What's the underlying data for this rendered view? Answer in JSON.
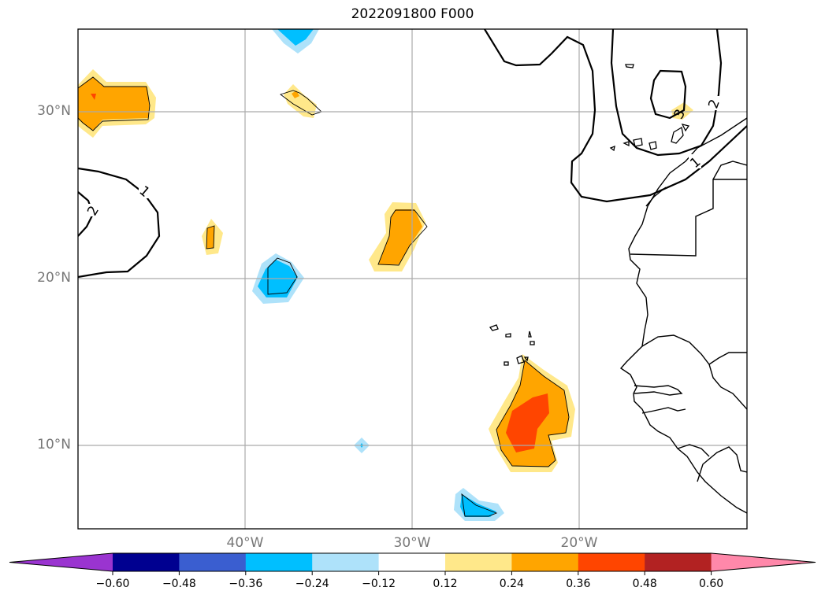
{
  "title": "2022091800 F000",
  "lat_labels": [
    "30°N",
    "20°N",
    "10°N"
  ],
  "lon_labels": [
    "40°W",
    "30°W",
    "20°W"
  ],
  "contour_labels": [
    "1",
    "2",
    "1",
    "2",
    "3"
  ],
  "colorbar": {
    "colors": [
      "#9a34d0",
      "#000090",
      "#3a5ed0",
      "#00bfff",
      "#aee2fa",
      "#ffffff",
      "#ffe88a",
      "#ffa500",
      "#ff4500",
      "#b22222",
      "#ff88aa"
    ],
    "ticks": [
      "−0.60",
      "−0.48",
      "−0.36",
      "−0.24",
      "−0.12",
      "0.12",
      "0.24",
      "0.36",
      "0.48",
      "0.60"
    ]
  }
}
